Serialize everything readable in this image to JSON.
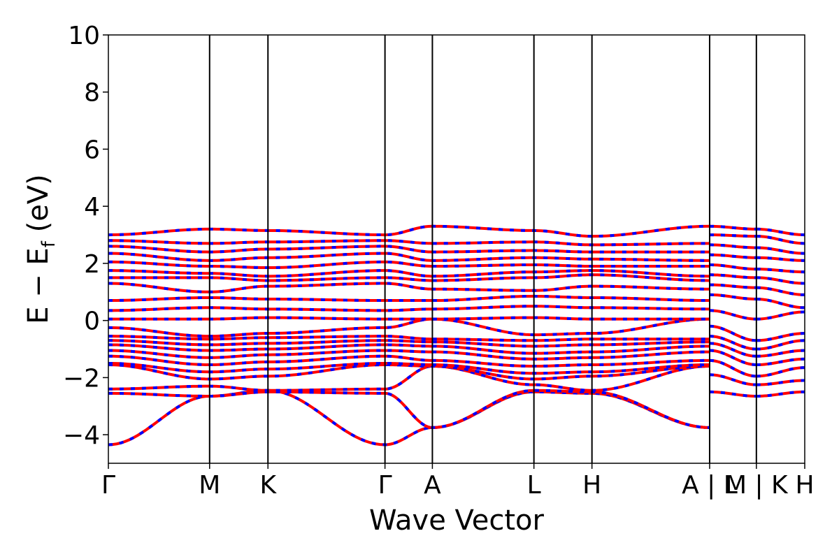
{
  "chart_data": {
    "type": "line",
    "xlabel": "Wave Vector",
    "ylabel": "E − E",
    "ylabel_subscript": "f",
    "ylabel_unit": " (eV)",
    "ylim": [
      -5,
      10
    ],
    "yticks": [
      -4,
      -2,
      0,
      2,
      4,
      6,
      8,
      10
    ],
    "ytick_labels": [
      "−4",
      "−2",
      "0",
      "2",
      "4",
      "6",
      "8",
      "10"
    ],
    "kpath_ticks": [
      {
        "label": "Γ",
        "x": 0.0
      },
      {
        "label": "M",
        "x": 0.628
      },
      {
        "label": "K",
        "x": 0.99
      },
      {
        "label": "Γ",
        "x": 1.716
      },
      {
        "label": "A",
        "x": 2.01
      },
      {
        "label": "L",
        "x": 2.64
      },
      {
        "label": "H",
        "x": 3.0
      },
      {
        "label": "A | L",
        "x": 3.73
      },
      {
        "label": "M | K",
        "x": 4.02
      },
      {
        "label": "H",
        "x": 4.32
      }
    ],
    "segments": [
      {
        "x": [
          0.0,
          0.628,
          0.99,
          1.716,
          2.01,
          2.64,
          3.0,
          3.73
        ],
        "bands": [
          [
            -4.35,
            -2.65,
            -2.45,
            -4.35,
            -3.75,
            -2.5,
            -2.55,
            -3.75
          ],
          [
            -2.55,
            -2.65,
            -2.5,
            -2.55,
            -3.75,
            -2.45,
            -2.5,
            -3.75
          ],
          [
            -2.4,
            -2.3,
            -2.45,
            -2.4,
            -1.6,
            -2.25,
            -2.45,
            -1.6
          ],
          [
            -1.55,
            -2.05,
            -1.95,
            -1.55,
            -1.6,
            -2.05,
            -1.95,
            -1.6
          ],
          [
            -1.5,
            -1.8,
            -1.7,
            -1.5,
            -1.55,
            -1.85,
            -1.8,
            -1.55
          ],
          [
            -1.25,
            -1.55,
            -1.45,
            -1.25,
            -1.4,
            -1.6,
            -1.55,
            -1.4
          ],
          [
            -1.05,
            -1.3,
            -1.2,
            -1.05,
            -1.1,
            -1.35,
            -1.3,
            -1.1
          ],
          [
            -0.85,
            -1.05,
            -1.0,
            -0.85,
            -0.9,
            -1.15,
            -1.1,
            -0.9
          ],
          [
            -0.7,
            -0.85,
            -0.8,
            -0.7,
            -0.75,
            -0.9,
            -0.85,
            -0.75
          ],
          [
            -0.55,
            -0.65,
            -0.6,
            -0.55,
            -0.65,
            -0.7,
            -0.65,
            -0.65
          ],
          [
            -0.25,
            -0.55,
            -0.45,
            -0.25,
            0.05,
            -0.5,
            -0.45,
            0.05
          ],
          [
            0.05,
            0.05,
            0.1,
            0.05,
            0.05,
            0.1,
            0.05,
            0.05
          ],
          [
            0.35,
            0.45,
            0.4,
            0.35,
            0.4,
            0.5,
            0.45,
            0.4
          ],
          [
            0.7,
            0.8,
            0.75,
            0.7,
            0.7,
            0.85,
            0.8,
            0.7
          ],
          [
            1.3,
            1.0,
            1.2,
            1.3,
            1.1,
            1.05,
            1.2,
            1.1
          ],
          [
            1.5,
            1.5,
            1.4,
            1.5,
            1.4,
            1.5,
            1.6,
            1.4
          ],
          [
            1.75,
            1.65,
            1.55,
            1.75,
            1.55,
            1.7,
            1.75,
            1.55
          ],
          [
            2.05,
            1.9,
            1.85,
            2.05,
            1.9,
            1.95,
            1.9,
            1.9
          ],
          [
            2.35,
            2.1,
            2.2,
            2.35,
            2.1,
            2.2,
            2.15,
            2.1
          ],
          [
            2.6,
            2.4,
            2.5,
            2.6,
            2.4,
            2.45,
            2.4,
            2.4
          ],
          [
            2.8,
            2.7,
            2.75,
            2.8,
            2.7,
            2.75,
            2.65,
            2.7
          ],
          [
            3.0,
            3.2,
            3.15,
            3.0,
            3.3,
            3.15,
            2.95,
            3.3
          ]
        ]
      },
      {
        "x": [
          3.73,
          4.02
        ],
        "bands": [
          [
            -2.5,
            -2.65
          ],
          [
            -1.9,
            -2.25
          ],
          [
            -1.4,
            -1.95
          ],
          [
            -1.05,
            -1.55
          ],
          [
            -0.8,
            -1.25
          ],
          [
            -0.55,
            -1.0
          ],
          [
            -0.2,
            -0.7
          ],
          [
            0.35,
            0.05
          ],
          [
            0.9,
            0.75
          ],
          [
            1.25,
            1.15
          ],
          [
            1.6,
            1.5
          ],
          [
            1.95,
            1.8
          ],
          [
            2.3,
            2.2
          ],
          [
            2.65,
            2.55
          ],
          [
            3.0,
            2.95
          ],
          [
            3.3,
            3.2
          ]
        ]
      },
      {
        "x": [
          4.02,
          4.32
        ],
        "bands": [
          [
            -2.65,
            -2.5
          ],
          [
            -2.25,
            -2.1
          ],
          [
            -1.95,
            -1.65
          ],
          [
            -1.55,
            -1.35
          ],
          [
            -1.25,
            -1.05
          ],
          [
            -1.0,
            -0.7
          ],
          [
            -0.7,
            -0.45
          ],
          [
            0.05,
            0.3
          ],
          [
            0.75,
            0.45
          ],
          [
            1.15,
            0.9
          ],
          [
            1.5,
            1.3
          ],
          [
            1.8,
            1.7
          ],
          [
            2.2,
            2.1
          ],
          [
            2.55,
            2.35
          ],
          [
            2.95,
            2.7
          ],
          [
            3.2,
            3.0
          ]
        ]
      }
    ],
    "colors": {
      "spin_up": "#ff0000",
      "spin_down": "#0000ff",
      "axes": "#000000"
    }
  }
}
